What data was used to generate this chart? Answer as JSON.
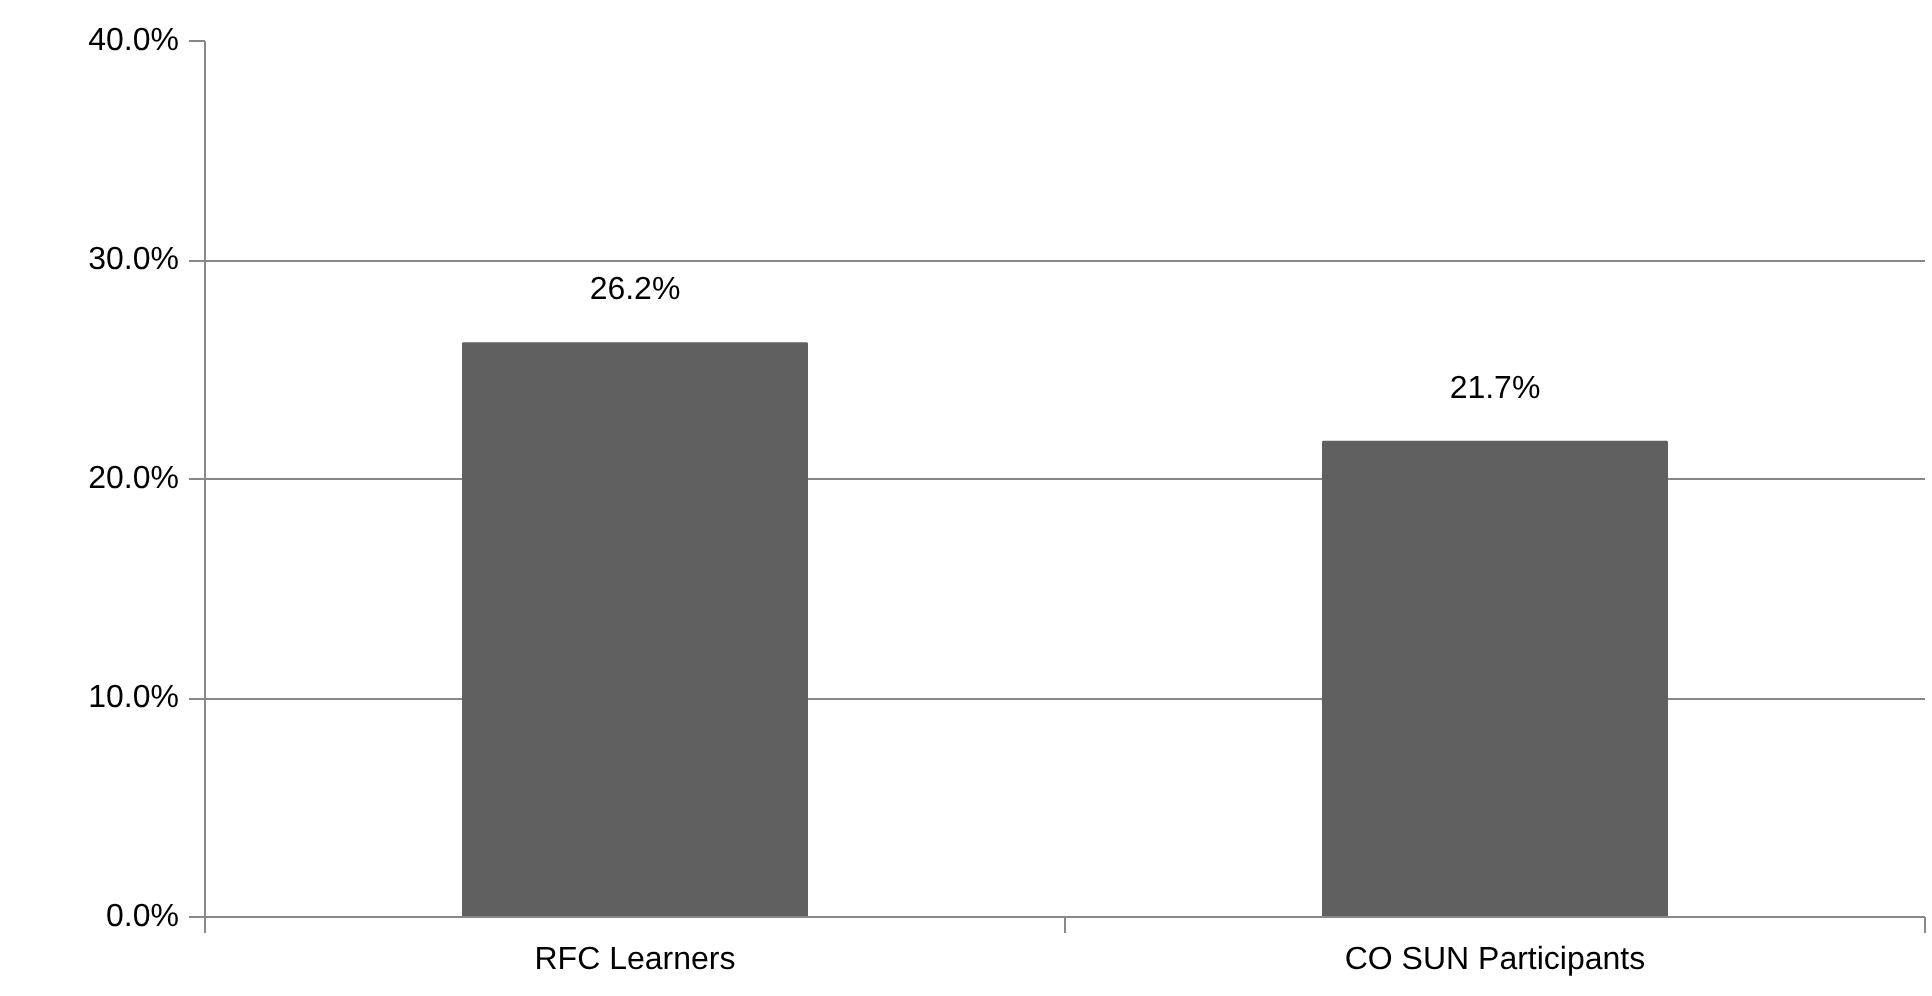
{
  "chart_data": {
    "type": "bar",
    "categories": [
      "RFC Learners",
      "CO SUN Participants"
    ],
    "values": [
      26.2,
      21.7
    ],
    "value_labels": [
      "26.2%",
      "21.7%"
    ],
    "color": "#606060",
    "ylim": [
      0,
      40
    ],
    "yticks": [
      {
        "value": 0,
        "label": "0.0%"
      },
      {
        "value": 10,
        "label": "10.0%"
      },
      {
        "value": 20,
        "label": "20.0%"
      },
      {
        "value": 30,
        "label": "30.0%"
      },
      {
        "value": 40,
        "label": "40.0%"
      }
    ],
    "grid": "y"
  }
}
